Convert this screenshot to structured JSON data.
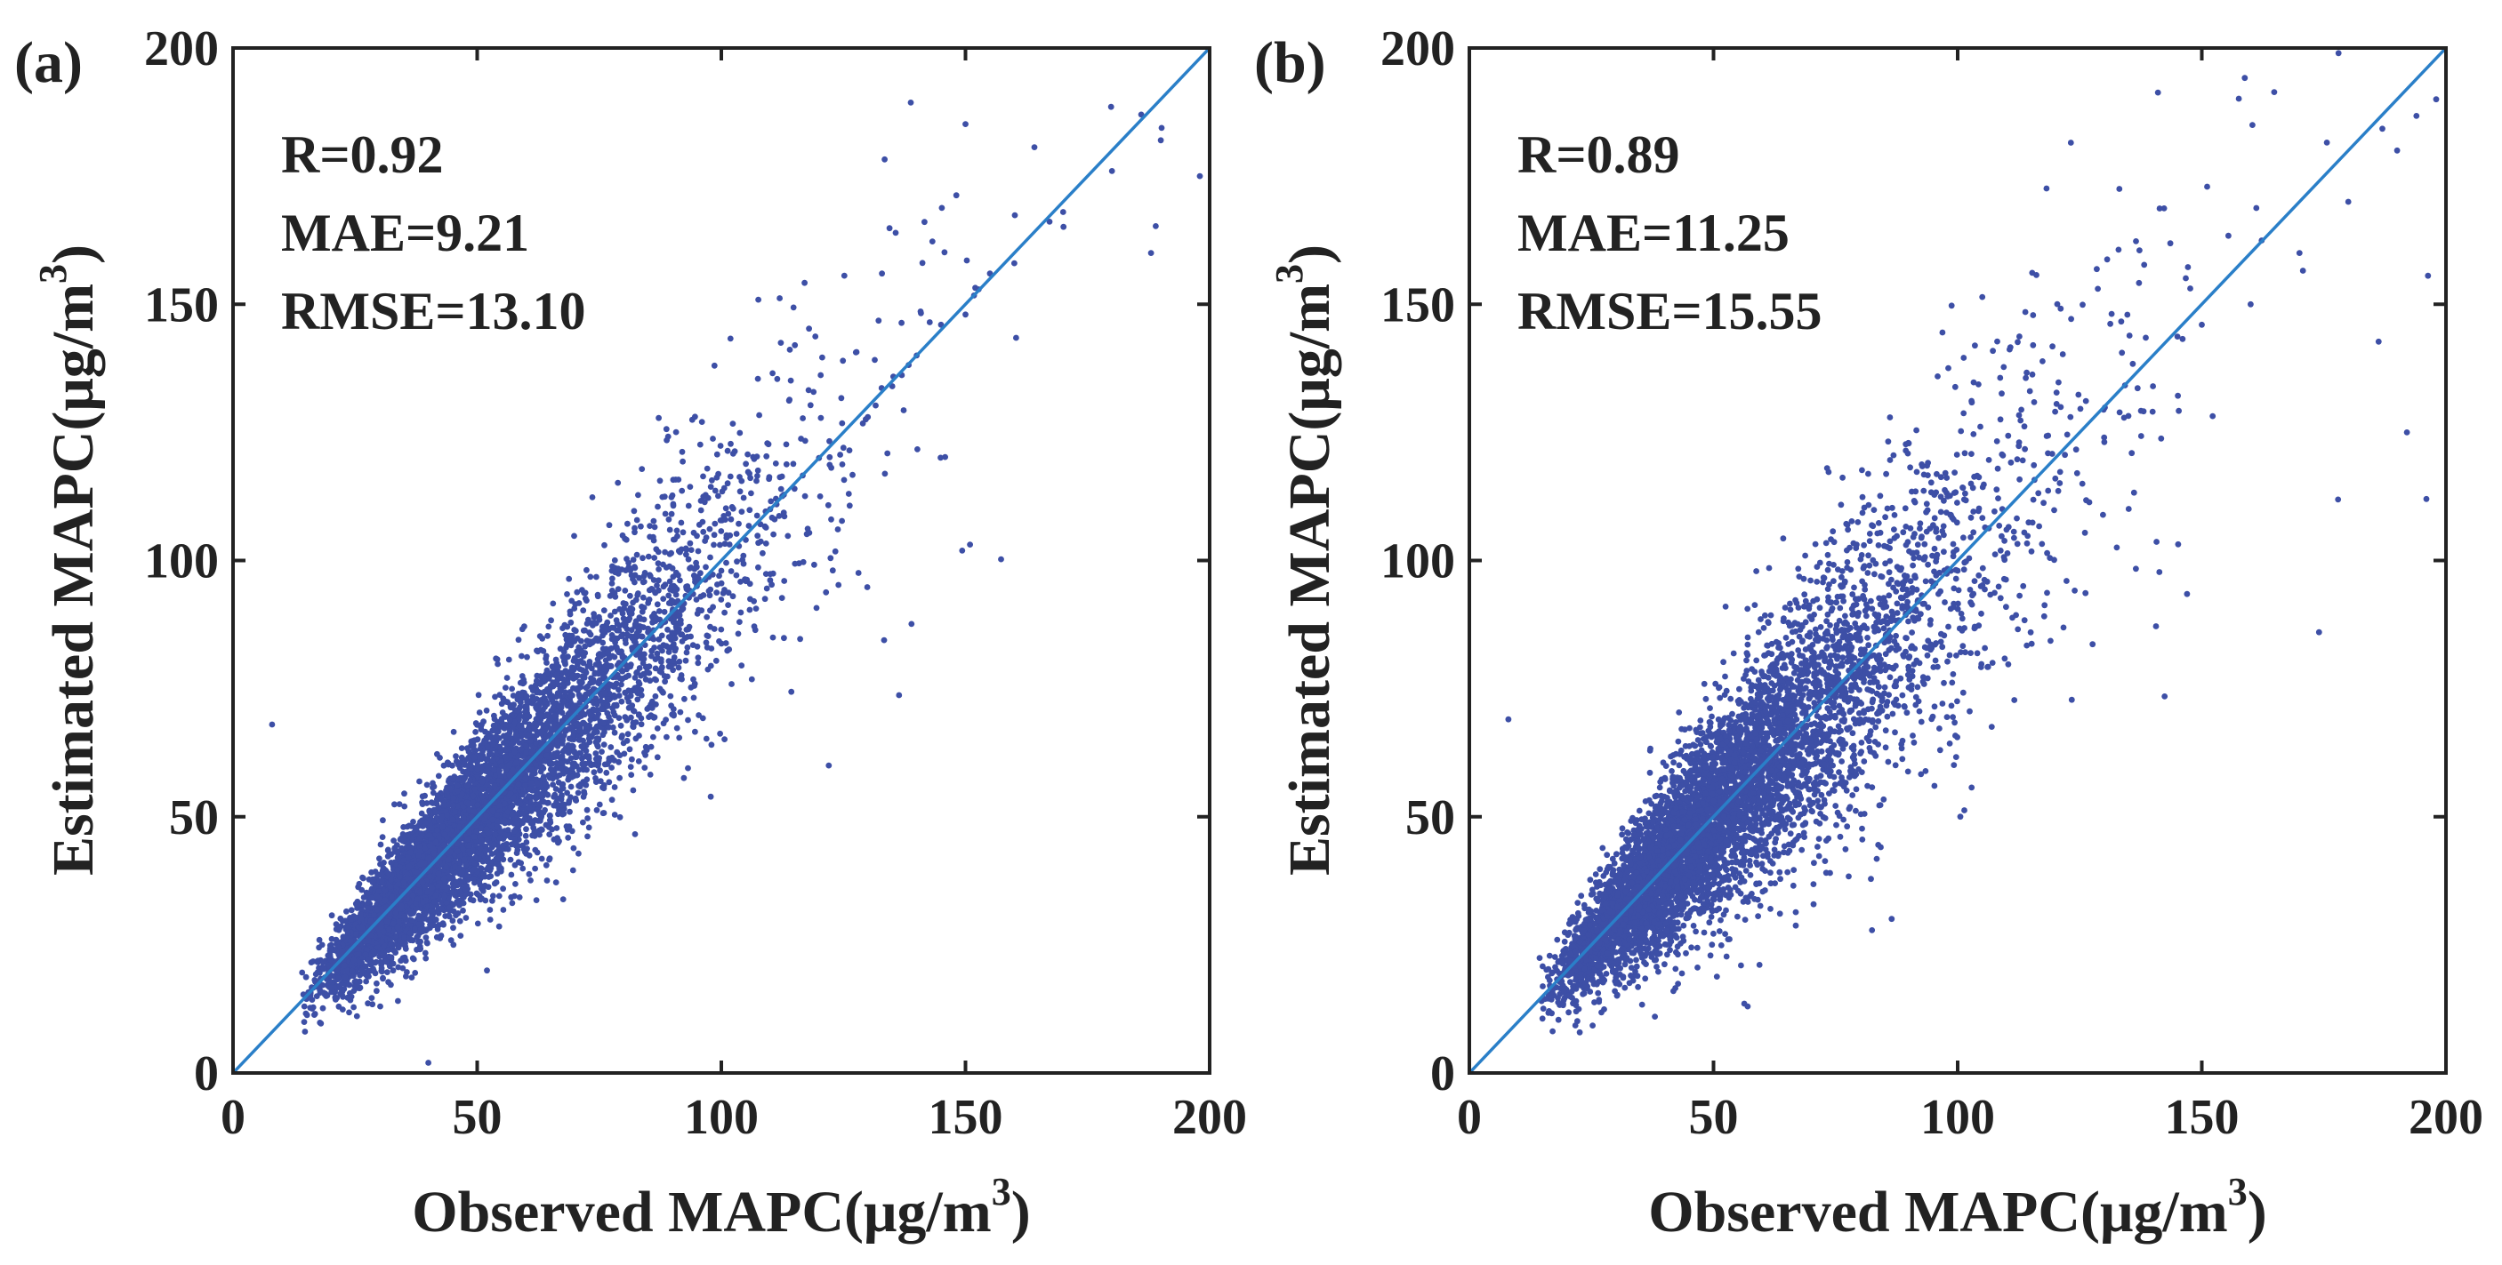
{
  "figure": {
    "background": "#ffffff"
  },
  "chart_data": [
    {
      "type": "scatter",
      "panel_label": "(a)",
      "xlabel_main": "Observed MAPC(μg/m",
      "xlabel_sup": "3",
      "xlabel_close": ")",
      "ylabel_main": "Estimated MAPC(μg/m",
      "ylabel_sup": "3",
      "ylabel_close": ")",
      "xlim": [
        0,
        200
      ],
      "ylim": [
        0,
        200
      ],
      "xticks": [
        0,
        50,
        100,
        150,
        200
      ],
      "yticks": [
        0,
        50,
        100,
        150,
        200
      ],
      "grid": false,
      "box": true,
      "stats": {
        "r": "R=0.92",
        "mae": "MAE=9.21",
        "rmse": "RMSE=13.10"
      },
      "reference_line": {
        "from": [
          0,
          0
        ],
        "to": [
          200,
          200
        ],
        "color": "#2a7fc8"
      },
      "point_color": "#3d4fa6",
      "approx_point_count": 6000,
      "correlation": 0.92,
      "points_sample": [
        [
          20,
          24
        ],
        [
          24,
          30
        ],
        [
          28,
          33
        ],
        [
          32,
          38
        ],
        [
          36,
          40
        ],
        [
          40,
          45
        ],
        [
          45,
          48
        ],
        [
          50,
          50
        ],
        [
          55,
          56
        ],
        [
          60,
          60
        ],
        [
          65,
          64
        ],
        [
          70,
          70
        ],
        [
          75,
          76
        ],
        [
          80,
          80
        ],
        [
          85,
          86
        ],
        [
          90,
          90
        ],
        [
          95,
          95
        ],
        [
          100,
          98
        ],
        [
          105,
          104
        ],
        [
          110,
          110
        ],
        [
          115,
          114
        ],
        [
          120,
          120
        ],
        [
          125,
          122
        ],
        [
          130,
          128
        ],
        [
          135,
          134
        ],
        [
          140,
          140
        ],
        [
          145,
          146
        ],
        [
          150,
          148
        ],
        [
          155,
          156
        ],
        [
          160,
          158
        ],
        [
          170,
          168
        ],
        [
          180,
          176
        ],
        [
          190,
          182
        ],
        [
          198,
          175
        ],
        [
          8,
          68
        ],
        [
          40,
          2
        ],
        [
          52,
          20
        ],
        [
          122,
          60
        ],
        [
          186,
          187
        ],
        [
          188,
          160
        ]
      ]
    },
    {
      "type": "scatter",
      "panel_label": "(b)",
      "xlabel_main": "Observed MAPC(μg/m",
      "xlabel_sup": "3",
      "xlabel_close": ")",
      "ylabel_main": "Estimated MAPC(μg/m",
      "ylabel_sup": "3",
      "ylabel_close": ")",
      "xlim": [
        0,
        200
      ],
      "ylim": [
        0,
        200
      ],
      "xticks": [
        0,
        50,
        100,
        150,
        200
      ],
      "yticks": [
        0,
        50,
        100,
        150,
        200
      ],
      "grid": false,
      "box": true,
      "stats": {
        "r": "R=0.89",
        "mae": "MAE=11.25",
        "rmse": "RMSE=15.55"
      },
      "reference_line": {
        "from": [
          0,
          0
        ],
        "to": [
          200,
          200
        ],
        "color": "#2a7fc8"
      },
      "point_color": "#3d4fa6",
      "approx_point_count": 6000,
      "correlation": 0.89,
      "points_sample": [
        [
          18,
          26
        ],
        [
          22,
          30
        ],
        [
          26,
          34
        ],
        [
          30,
          38
        ],
        [
          35,
          42
        ],
        [
          40,
          46
        ],
        [
          45,
          50
        ],
        [
          50,
          52
        ],
        [
          55,
          56
        ],
        [
          60,
          60
        ],
        [
          65,
          64
        ],
        [
          70,
          68
        ],
        [
          75,
          74
        ],
        [
          80,
          80
        ],
        [
          85,
          84
        ],
        [
          90,
          90
        ],
        [
          95,
          95
        ],
        [
          100,
          98
        ],
        [
          110,
          106
        ],
        [
          120,
          116
        ],
        [
          130,
          124
        ],
        [
          140,
          134
        ],
        [
          150,
          146
        ],
        [
          160,
          150
        ],
        [
          170,
          160
        ],
        [
          180,
          170
        ],
        [
          190,
          180
        ],
        [
          198,
          190
        ],
        [
          8,
          69
        ],
        [
          38,
          11
        ],
        [
          57,
          13
        ],
        [
          174,
          86
        ],
        [
          178,
          199
        ],
        [
          192,
          125
        ],
        [
          196,
          112
        ]
      ]
    }
  ]
}
